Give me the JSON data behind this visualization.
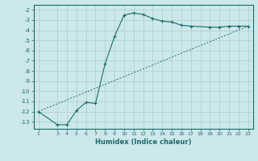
{
  "title": "",
  "xlabel": "Humidex (Indice chaleur)",
  "bg_color": "#cce8eb",
  "grid_color": "#aacccc",
  "line_color": "#1a6b6b",
  "line1_x": [
    1,
    3,
    4,
    5,
    6,
    7,
    8,
    9,
    10,
    11,
    12,
    13,
    14,
    15,
    16,
    17,
    19,
    20,
    21,
    22,
    23
  ],
  "line1_y": [
    -12.0,
    -13.3,
    -13.3,
    -11.9,
    -11.1,
    -11.2,
    -7.3,
    -4.6,
    -2.5,
    -2.3,
    -2.45,
    -2.85,
    -3.1,
    -3.2,
    -3.5,
    -3.6,
    -3.7,
    -3.7,
    -3.6,
    -3.6,
    -3.6
  ],
  "line2_x": [
    1,
    23
  ],
  "line2_y": [
    -12.0,
    -3.6
  ],
  "ylim": [
    -13.7,
    -1.5
  ],
  "yticks": [
    -2,
    -3,
    -4,
    -5,
    -6,
    -7,
    -8,
    -9,
    -10,
    -11,
    -12,
    -13
  ],
  "xlim": [
    0.5,
    23.5
  ],
  "xticks": [
    1,
    3,
    4,
    5,
    6,
    7,
    8,
    9,
    10,
    11,
    12,
    13,
    14,
    15,
    16,
    17,
    18,
    19,
    20,
    21,
    22,
    23
  ],
  "xticklabels": [
    "1",
    "3",
    "4",
    "5",
    "6",
    "7",
    "8",
    "9",
    "10",
    "11",
    "12",
    "13",
    "14",
    "15",
    "16",
    "17",
    "18",
    "19",
    "20",
    "21",
    "22",
    "23"
  ]
}
